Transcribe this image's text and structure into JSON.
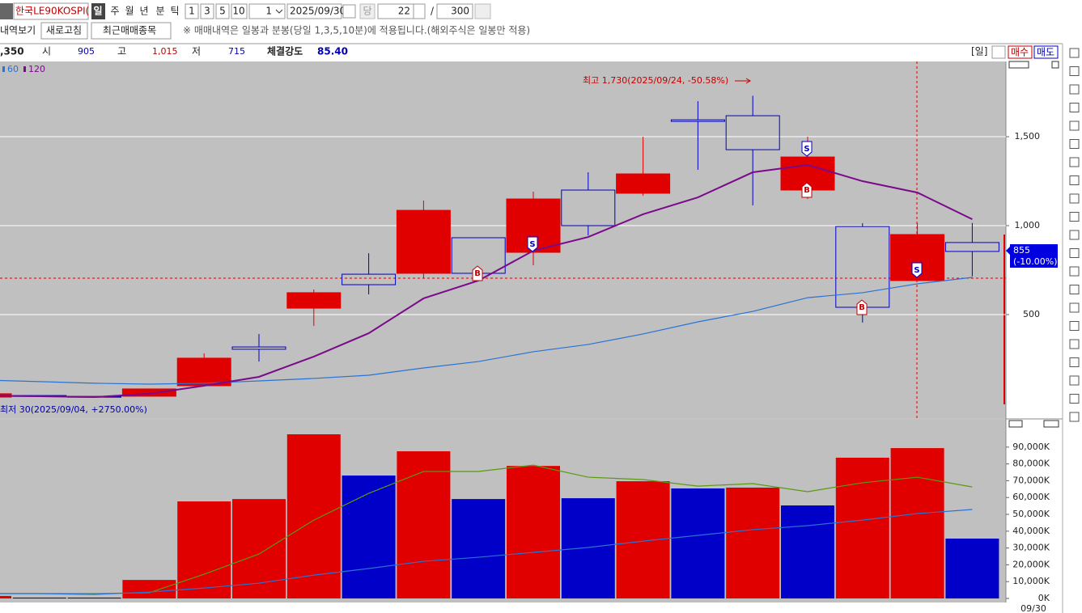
{
  "toolbar": {
    "symbol": "한국LE90KOSPI(",
    "periods": [
      "일",
      "주",
      "월",
      "년",
      "분",
      "틱"
    ],
    "minutes": [
      "1",
      "3",
      "5",
      "10"
    ],
    "unit": "1",
    "date": "2025/09/30",
    "today": "당",
    "count": "22",
    "slash": "/",
    "total": "300"
  },
  "toolbar2": {
    "label": "내역보기",
    "refresh": "새로고침",
    "recent": "최근매매종목",
    "notice": "※ 매매내역은 일봉과 분봉(당일 1,3,5,10분)에 적용됩니다.(해외주식은 일봉만 적용)"
  },
  "quote": {
    "last": ",350",
    "open_label": "시",
    "open": "905",
    "high_label": "고",
    "high": "1,015",
    "low_label": "저",
    "low": "715",
    "strength_label": "체결강도",
    "strength": "85.40",
    "period": "[일]",
    "buy": "매수",
    "sell": "매도"
  },
  "trade_markers": [
    "S",
    "S",
    "S",
    "B",
    "B",
    "B"
  ],
  "chart_data": [
    {
      "type": "candlestick",
      "open": [
        36,
        45,
        40,
        41,
        100,
        318,
        536,
        727,
        732,
        932,
        850,
        1200,
        1182,
        1595,
        1618,
        1200,
        995,
        691,
        905
      ],
      "high": [
        60,
        45,
        40,
        82,
        282,
        391,
        641,
        845,
        1141,
        932,
        1191,
        1300,
        1500,
        1700,
        1730,
        1500,
        1014,
        1014,
        1015
      ],
      "low": [
        30,
        40,
        36,
        41,
        95,
        236,
        436,
        614,
        705,
        732,
        777,
        945,
        1168,
        1314,
        1114,
        1150,
        455,
        691,
        715
      ],
      "close": [
        55,
        40,
        36,
        82,
        255,
        305,
        623,
        668,
        1086,
        732,
        1150,
        1000,
        1291,
        1586,
        1427,
        1386,
        541,
        950,
        855
      ],
      "up_color": "#e00000",
      "down_color": "#0000c0",
      "series": [
        {
          "name": "60",
          "color": "#2a72d4",
          "values": [
            132,
            123,
            114,
            109,
            114,
            127,
            141,
            159,
            200,
            236,
            291,
            332,
            391,
            459,
            518,
            595,
            623,
            673,
            709
          ]
        },
        {
          "name": "120",
          "color": "#7a0a8a",
          "values": [
            45,
            41,
            36,
            55,
            100,
            150,
            264,
            395,
            591,
            691,
            859,
            936,
            1064,
            1159,
            1300,
            1341,
            1250,
            1186,
            1036
          ]
        }
      ],
      "ylim": [
        -82,
        1923
      ],
      "yticks": [
        500,
        {
          "value": 1000,
          "label": "1,000"
        },
        {
          "value": 1500,
          "label": "1,500"
        }
      ],
      "grid": true,
      "high_annotation": "최고 1,730(2025/09/24, -50.58%)",
      "low_annotation": "최저 30(2025/09/04, +2750.00%)",
      "current_label": "855",
      "change_label": "(-10.00%)"
    },
    {
      "type": "bar",
      "categories": [
        null,
        null,
        null,
        null,
        null,
        null,
        null,
        null,
        null,
        null,
        null,
        null,
        null,
        null,
        null,
        null,
        null,
        null,
        "09/30"
      ],
      "values": [
        1500,
        500,
        500,
        11000,
        57700,
        59100,
        97600,
        73100,
        87500,
        59100,
        78800,
        59600,
        69700,
        65400,
        65900,
        55300,
        83700,
        89400,
        35600
      ],
      "colors": [
        "#e00000",
        "#0000c8",
        "#0000c8",
        "#e00000",
        "#e00000",
        "#e00000",
        "#e00000",
        "#0000c8",
        "#e00000",
        "#0000c8",
        "#e00000",
        "#0000c8",
        "#e00000",
        "#0000c8",
        "#e00000",
        "#0000c8",
        "#e00000",
        "#e00000",
        "#0000c8"
      ],
      "series": [
        {
          "color": "#5a9a10",
          "values": [
            2900,
            2900,
            2900,
            3400,
            14400,
            26400,
            46600,
            62500,
            75500,
            75500,
            79300,
            72100,
            70700,
            66800,
            68300,
            63500,
            68800,
            72100,
            66300
          ]
        },
        {
          "color": "#2a72d4",
          "values": [
            2900,
            2900,
            2400,
            3800,
            6200,
            9100,
            13900,
            17800,
            22100,
            24500,
            27400,
            30300,
            34100,
            37500,
            40900,
            43300,
            46600,
            50500,
            52900
          ]
        }
      ],
      "ylim": [
        -2400,
        105800
      ],
      "yticks": [
        {
          "value": 0,
          "label": "0K"
        },
        {
          "value": 10000,
          "label": "10,000K"
        },
        {
          "value": 20000,
          "label": "20,000K"
        },
        {
          "value": 30000,
          "label": "30,000K"
        },
        {
          "value": 40000,
          "label": "40,000K"
        },
        {
          "value": 50000,
          "label": "50,000K"
        },
        {
          "value": 60000,
          "label": "60,000K"
        },
        {
          "value": 70000,
          "label": "70,000K"
        },
        {
          "value": 80000,
          "label": "80,000K"
        },
        {
          "value": 90000,
          "label": "90,000K"
        }
      ],
      "grid": false
    }
  ]
}
